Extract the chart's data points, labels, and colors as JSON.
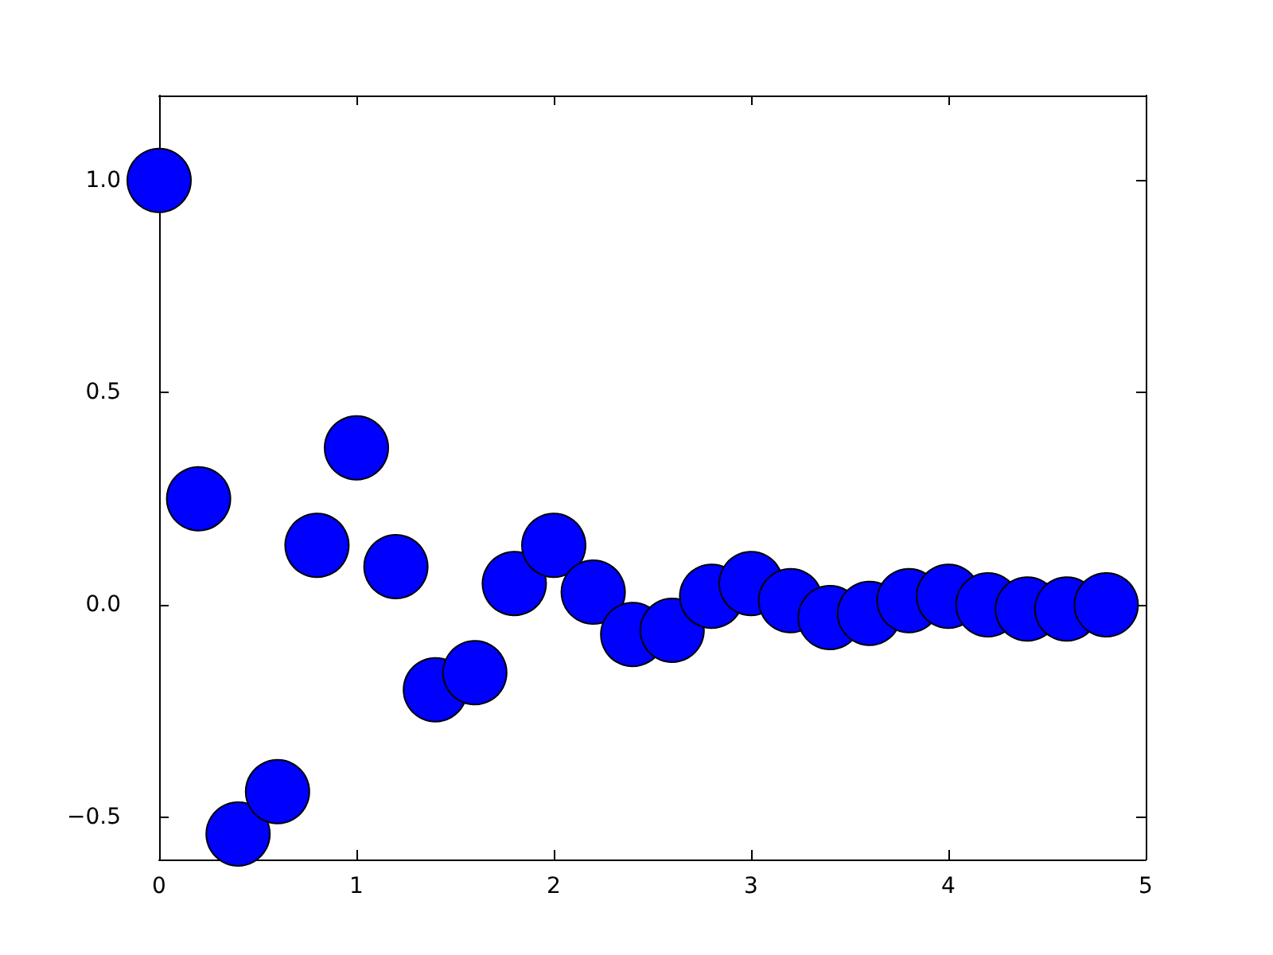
{
  "chart_data": {
    "type": "scatter",
    "x": [
      0,
      0.2,
      0.4,
      0.6,
      0.8,
      1.0,
      1.2,
      1.4,
      1.6,
      1.8,
      2.0,
      2.2,
      2.4,
      2.6,
      2.8,
      3.0,
      3.2,
      3.4,
      3.6,
      3.8,
      4.0,
      4.2,
      4.4,
      4.6,
      4.8
    ],
    "series": [
      {
        "color": "#0000ff",
        "values": [
          1.0,
          0.25,
          -0.54,
          -0.44,
          0.14,
          0.37,
          0.09,
          -0.2,
          -0.16,
          0.05,
          0.14,
          0.03,
          -0.07,
          -0.06,
          0.02,
          0.05,
          0.01,
          -0.03,
          -0.02,
          0.01,
          0.02,
          0.0,
          -0.01,
          -0.01,
          0.0
        ]
      }
    ],
    "xlim": [
      0,
      5
    ],
    "xticks": [
      0,
      1,
      2,
      3,
      4,
      5
    ],
    "ylim": [
      -0.6,
      1.2
    ],
    "yticks": [
      {
        "value": -0.5,
        "label": "−0.5"
      },
      {
        "value": 0,
        "label": "0.0"
      },
      {
        "value": 0.5,
        "label": "0.5"
      },
      {
        "value": 1,
        "label": "1.0"
      }
    ],
    "marker": "circle",
    "grid": false
  }
}
